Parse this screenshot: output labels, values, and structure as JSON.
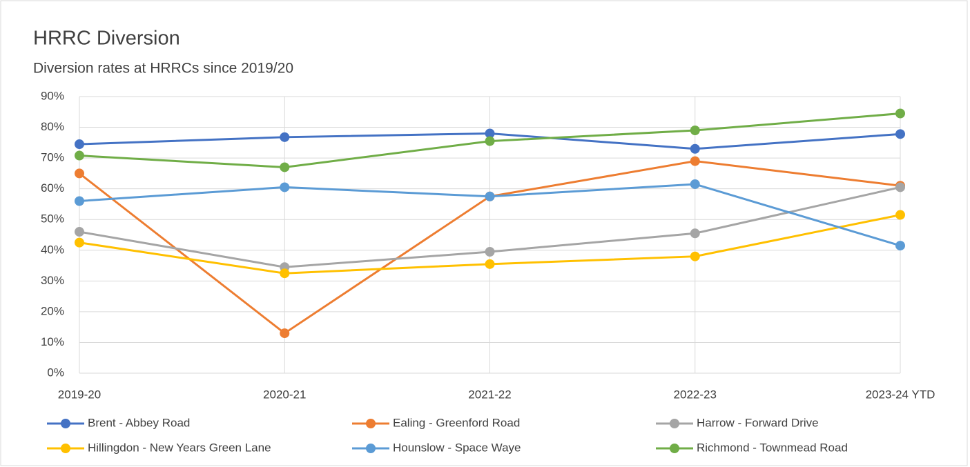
{
  "chart_data": {
    "type": "line",
    "title": "HRRC Diversion",
    "subtitle": "Diversion rates at HRRCs since 2019/20",
    "categories": [
      "2019-20",
      "2020-21",
      "2021-22",
      "2022-23",
      "2023-24 YTD"
    ],
    "series": [
      {
        "name": "Brent - Abbey Road",
        "color": "#4472c4",
        "values": [
          74.5,
          76.8,
          78,
          73,
          77.8
        ]
      },
      {
        "name": "Ealing - Greenford Road",
        "color": "#ed7d31",
        "values": [
          65,
          13,
          57.5,
          69,
          61
        ]
      },
      {
        "name": "Harrow - Forward Drive",
        "color": "#a5a5a5",
        "values": [
          46,
          34.5,
          39.5,
          45.5,
          60.5
        ]
      },
      {
        "name": "Hillingdon - New Years Green Lane",
        "color": "#ffc000",
        "values": [
          42.5,
          32.5,
          35.5,
          38,
          51.5
        ]
      },
      {
        "name": "Hounslow - Space Waye",
        "color": "#5b9bd5",
        "values": [
          56,
          60.5,
          57.5,
          61.5,
          41.5
        ]
      },
      {
        "name": "Richmond - Townmead Road",
        "color": "#70ad47",
        "values": [
          70.8,
          67,
          75.5,
          79,
          84.5
        ]
      }
    ],
    "ylim": [
      0,
      90
    ],
    "yticks": [
      {
        "value": 0,
        "label": "0%"
      },
      {
        "value": 10,
        "label": "10%"
      },
      {
        "value": 20,
        "label": "20%"
      },
      {
        "value": 30,
        "label": "30%"
      },
      {
        "value": 40,
        "label": "40%"
      },
      {
        "value": 50,
        "label": "50%"
      },
      {
        "value": 60,
        "label": "60%"
      },
      {
        "value": 70,
        "label": "70%"
      },
      {
        "value": 80,
        "label": "80%"
      },
      {
        "value": 90,
        "label": "90%"
      }
    ],
    "grid": true,
    "legend": "bottom"
  }
}
